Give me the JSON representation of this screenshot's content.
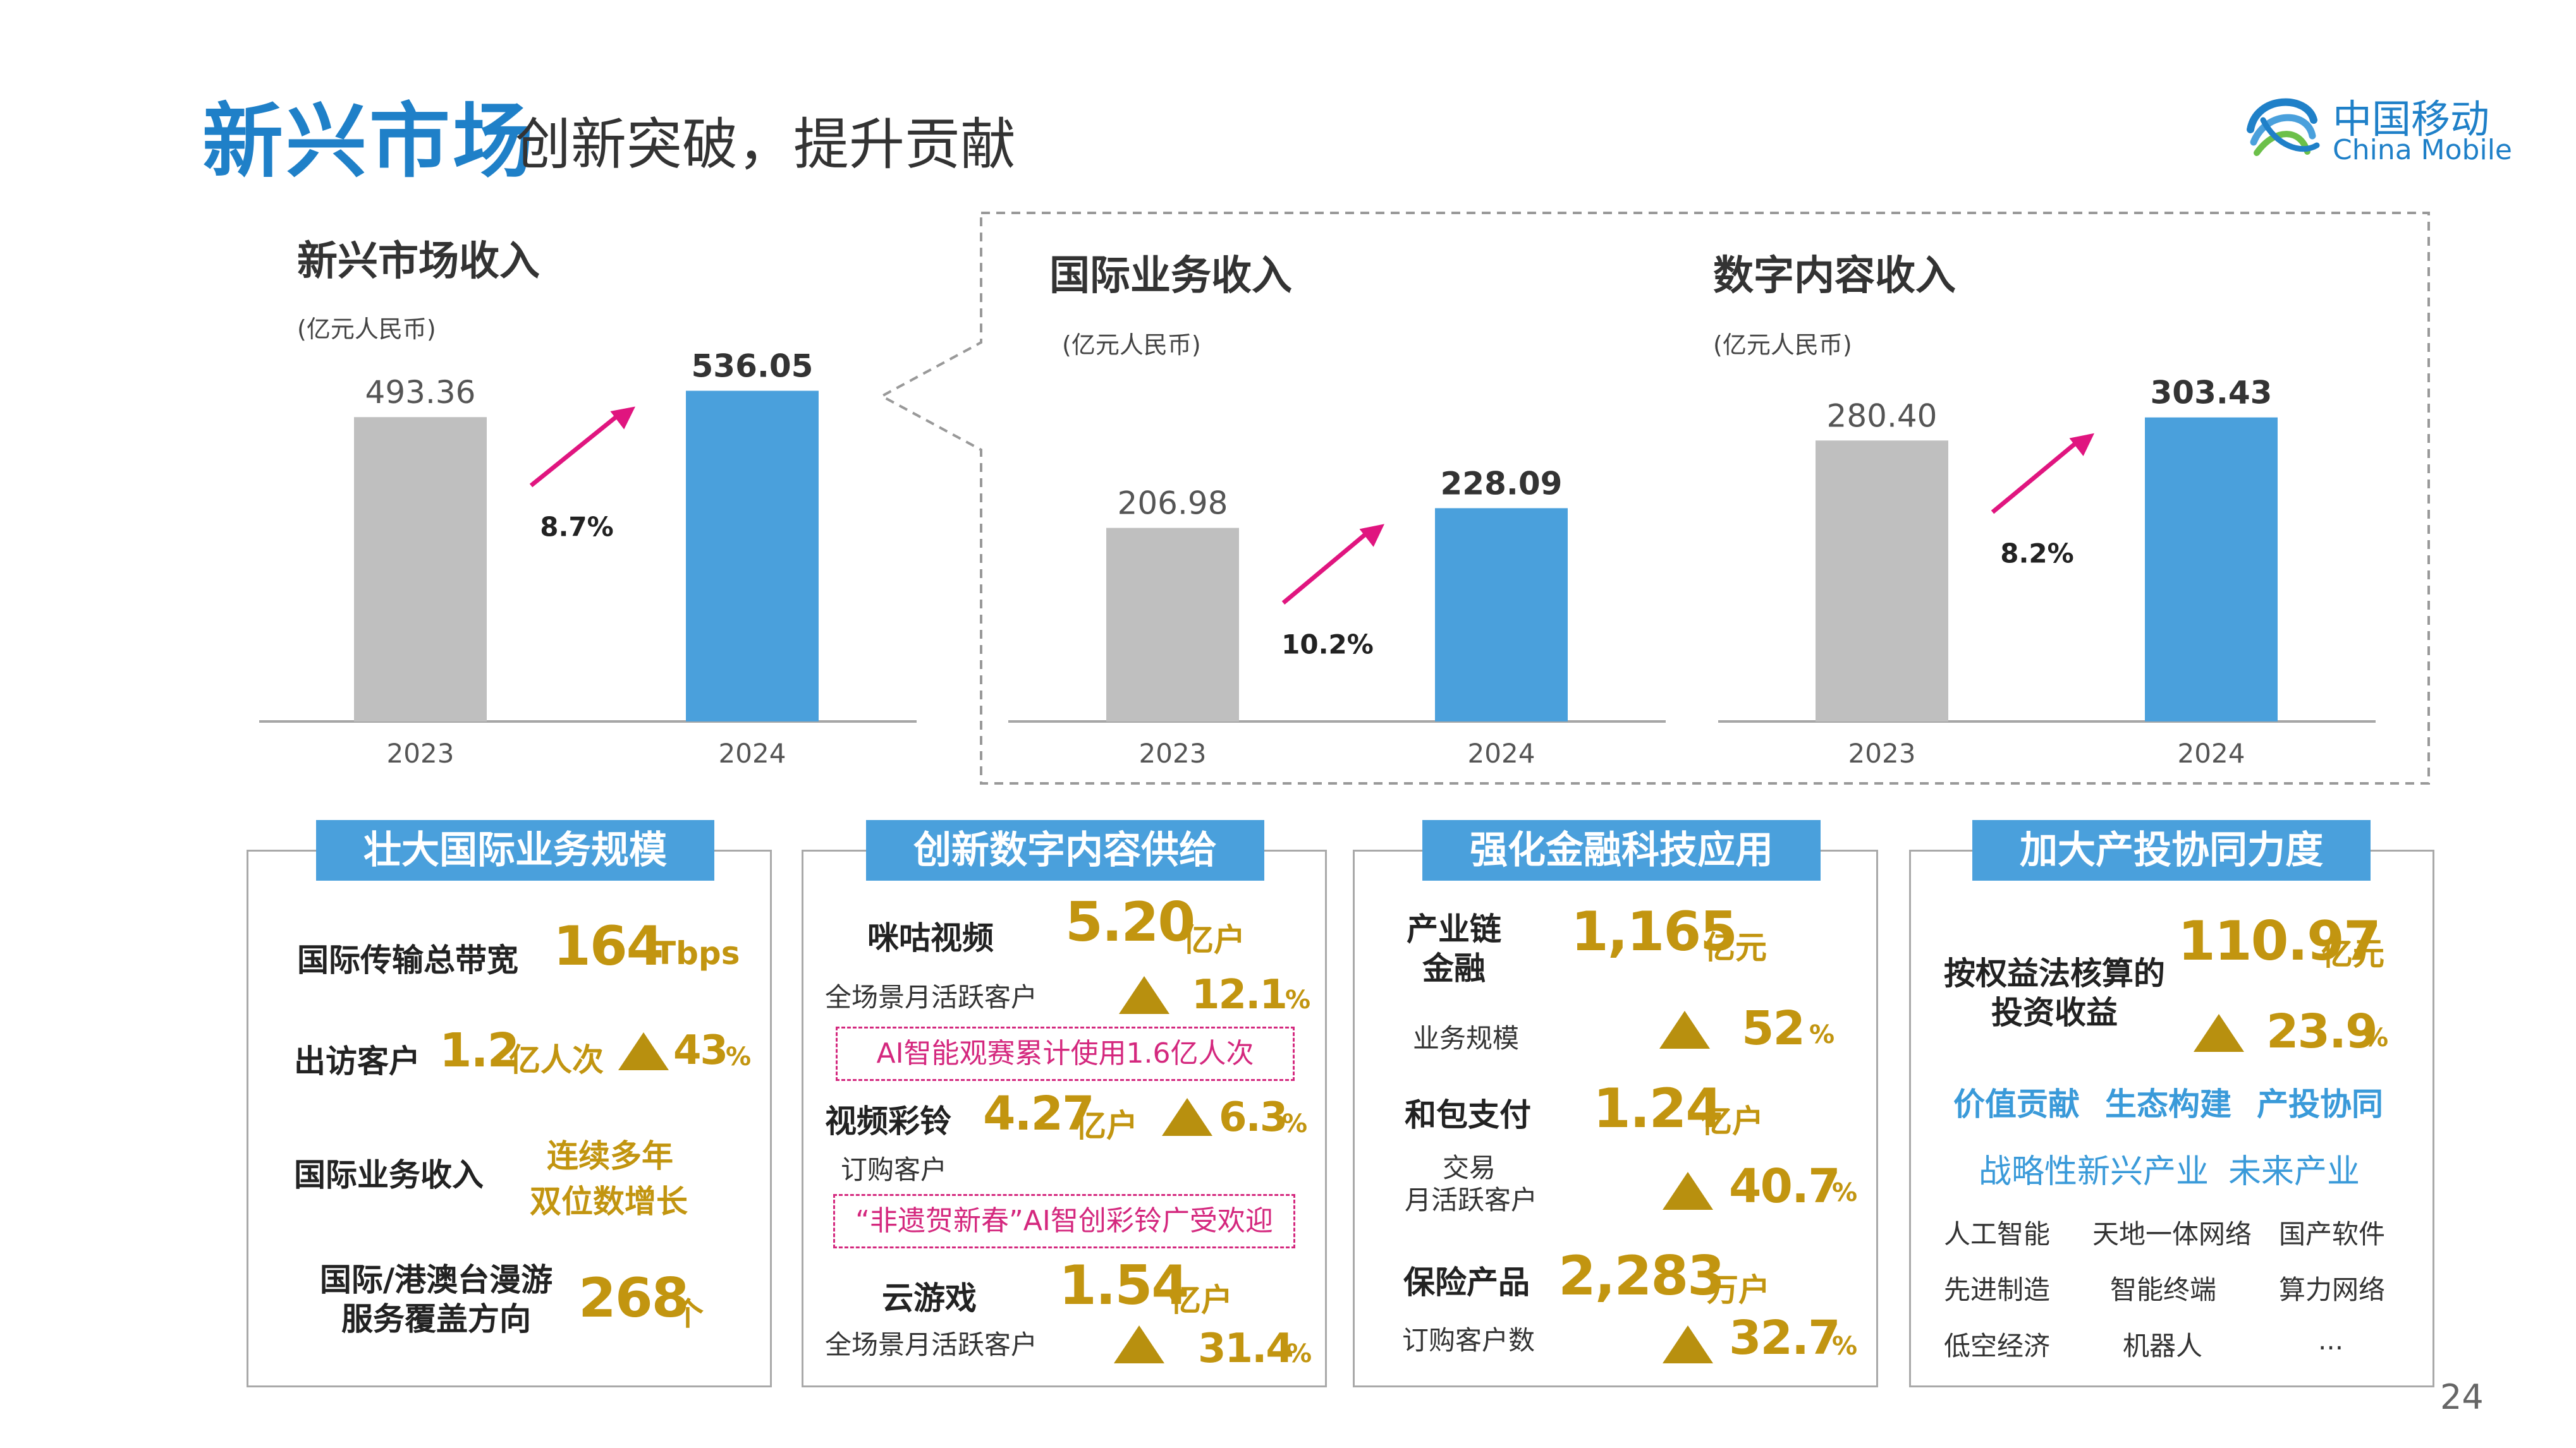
{
  "header": {
    "title": "新兴市场",
    "subtitle": "创新突破，提升贡献"
  },
  "logo": {
    "cn": "中国移动",
    "en": "China Mobile"
  },
  "colors": {
    "bar_2023": "#bfbfbf",
    "bar_2024": "#4aa0dc",
    "arrow": "#e0157f",
    "accent_gold": "#c29510",
    "panel_header": "#4aa0dc"
  },
  "chart_data": [
    {
      "type": "bar",
      "title": "新兴市场收入",
      "unit": "(亿元人民币)",
      "categories": [
        "2023",
        "2024"
      ],
      "values": [
        493.36,
        536.05
      ],
      "value_labels": [
        "493.36",
        "536.05"
      ],
      "growth": "8.7%"
    },
    {
      "type": "bar",
      "title": "国际业务收入",
      "unit": "(亿元人民币)",
      "categories": [
        "2023",
        "2024"
      ],
      "values": [
        206.98,
        228.09
      ],
      "value_labels": [
        "206.98",
        "228.09"
      ],
      "growth": "10.2%"
    },
    {
      "type": "bar",
      "title": "数字内容收入",
      "unit": "(亿元人民币)",
      "categories": [
        "2023",
        "2024"
      ],
      "values": [
        280.4,
        303.43
      ],
      "value_labels": [
        "280.40",
        "303.43"
      ],
      "growth": "8.2%"
    }
  ],
  "panel1": {
    "header": "壮大国际业务规模",
    "r1_label": "国际传输总带宽",
    "r1_value": "164",
    "r1_unit": "Tbps",
    "r2_label": "出访客户",
    "r2_value": "1.2",
    "r2_unit": "亿人次",
    "r2_pct": "43",
    "r2_pct_unit": "%",
    "r3_label": "国际业务收入",
    "r3_note_1": "连续多年",
    "r3_note_2": "双位数增长",
    "r4_label_1": "国际/港澳台漫游",
    "r4_label_2": "服务覆盖方向",
    "r4_value": "268",
    "r4_unit": "个"
  },
  "panel2": {
    "header": "创新数字内容供给",
    "r1_label": "咪咕视频",
    "r1_value": "5.20",
    "r1_unit": "亿户",
    "r1_sub": "全场景月活跃客户",
    "r1_pct": "12.1",
    "r1_pct_unit": "%",
    "r1_box": "AI智能观赛累计使用1.6亿人次",
    "r2_label": "视频彩铃",
    "r2_value": "4.27",
    "r2_unit": "亿户",
    "r2_pct": "6.3",
    "r2_pct_unit": "%",
    "r2_sub": "订购客户",
    "r2_box": "“非遗贺新春”AI智创彩铃广受欢迎",
    "r3_label": "云游戏",
    "r3_value": "1.54",
    "r3_unit": "亿户",
    "r3_sub": "全场景月活跃客户",
    "r3_pct": "31.4",
    "r3_pct_unit": "%"
  },
  "panel3": {
    "header": "强化金融科技应用",
    "r1_label_1": "产业链",
    "r1_label_2": "金融",
    "r1_value": "1,165",
    "r1_unit": "亿元",
    "r1_sub": "业务规模",
    "r1_pct": "52",
    "r1_pct_unit": "%",
    "r2_label": "和包支付",
    "r2_value": "1.24",
    "r2_unit": "亿户",
    "r2_sub_1": "交易",
    "r2_sub_2": "月活跃客户",
    "r2_pct": "40.7",
    "r2_pct_unit": "%",
    "r3_label": "保险产品",
    "r3_value": "2,283",
    "r3_unit": "万户",
    "r3_sub": "订购客户数",
    "r3_pct": "32.7",
    "r3_pct_unit": "%"
  },
  "panel4": {
    "header": "加大产投协同力度",
    "r1_label_1": "按权益法核算的",
    "r1_label_2": "投资收益",
    "r1_value": "110.97",
    "r1_unit": "亿元",
    "r1_pct": "23.9",
    "r1_pct_unit": "%",
    "kw1": "价值贡献",
    "kw2": "生态构建",
    "kw3": "产投协同",
    "kw4": "战略性新兴产业",
    "kw5": "未来产业",
    "grid": [
      "人工智能",
      "天地一体网络",
      "国产软件",
      "先进制造",
      "智能终端",
      "算力网络",
      "低空经济",
      "机器人",
      "..."
    ]
  },
  "page_number": "24"
}
